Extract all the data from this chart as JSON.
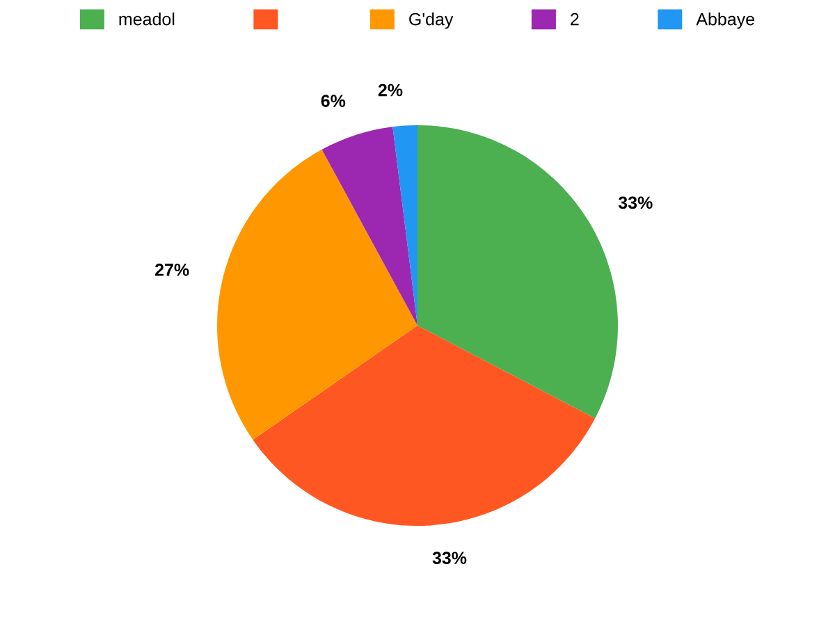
{
  "chart_data": {
    "type": "pie",
    "categories": [
      "meadol",
      null,
      "G'day",
      "2",
      "Abbaye"
    ],
    "values": [
      33,
      33,
      27,
      6,
      2
    ],
    "colors": [
      "#4caf50",
      "#ff5722",
      "#ff9800",
      "#9c27b0",
      "#2196f3"
    ],
    "value_labels": [
      "33%",
      "33%",
      "27%",
      "6%",
      "2%"
    ],
    "legend": "top"
  }
}
